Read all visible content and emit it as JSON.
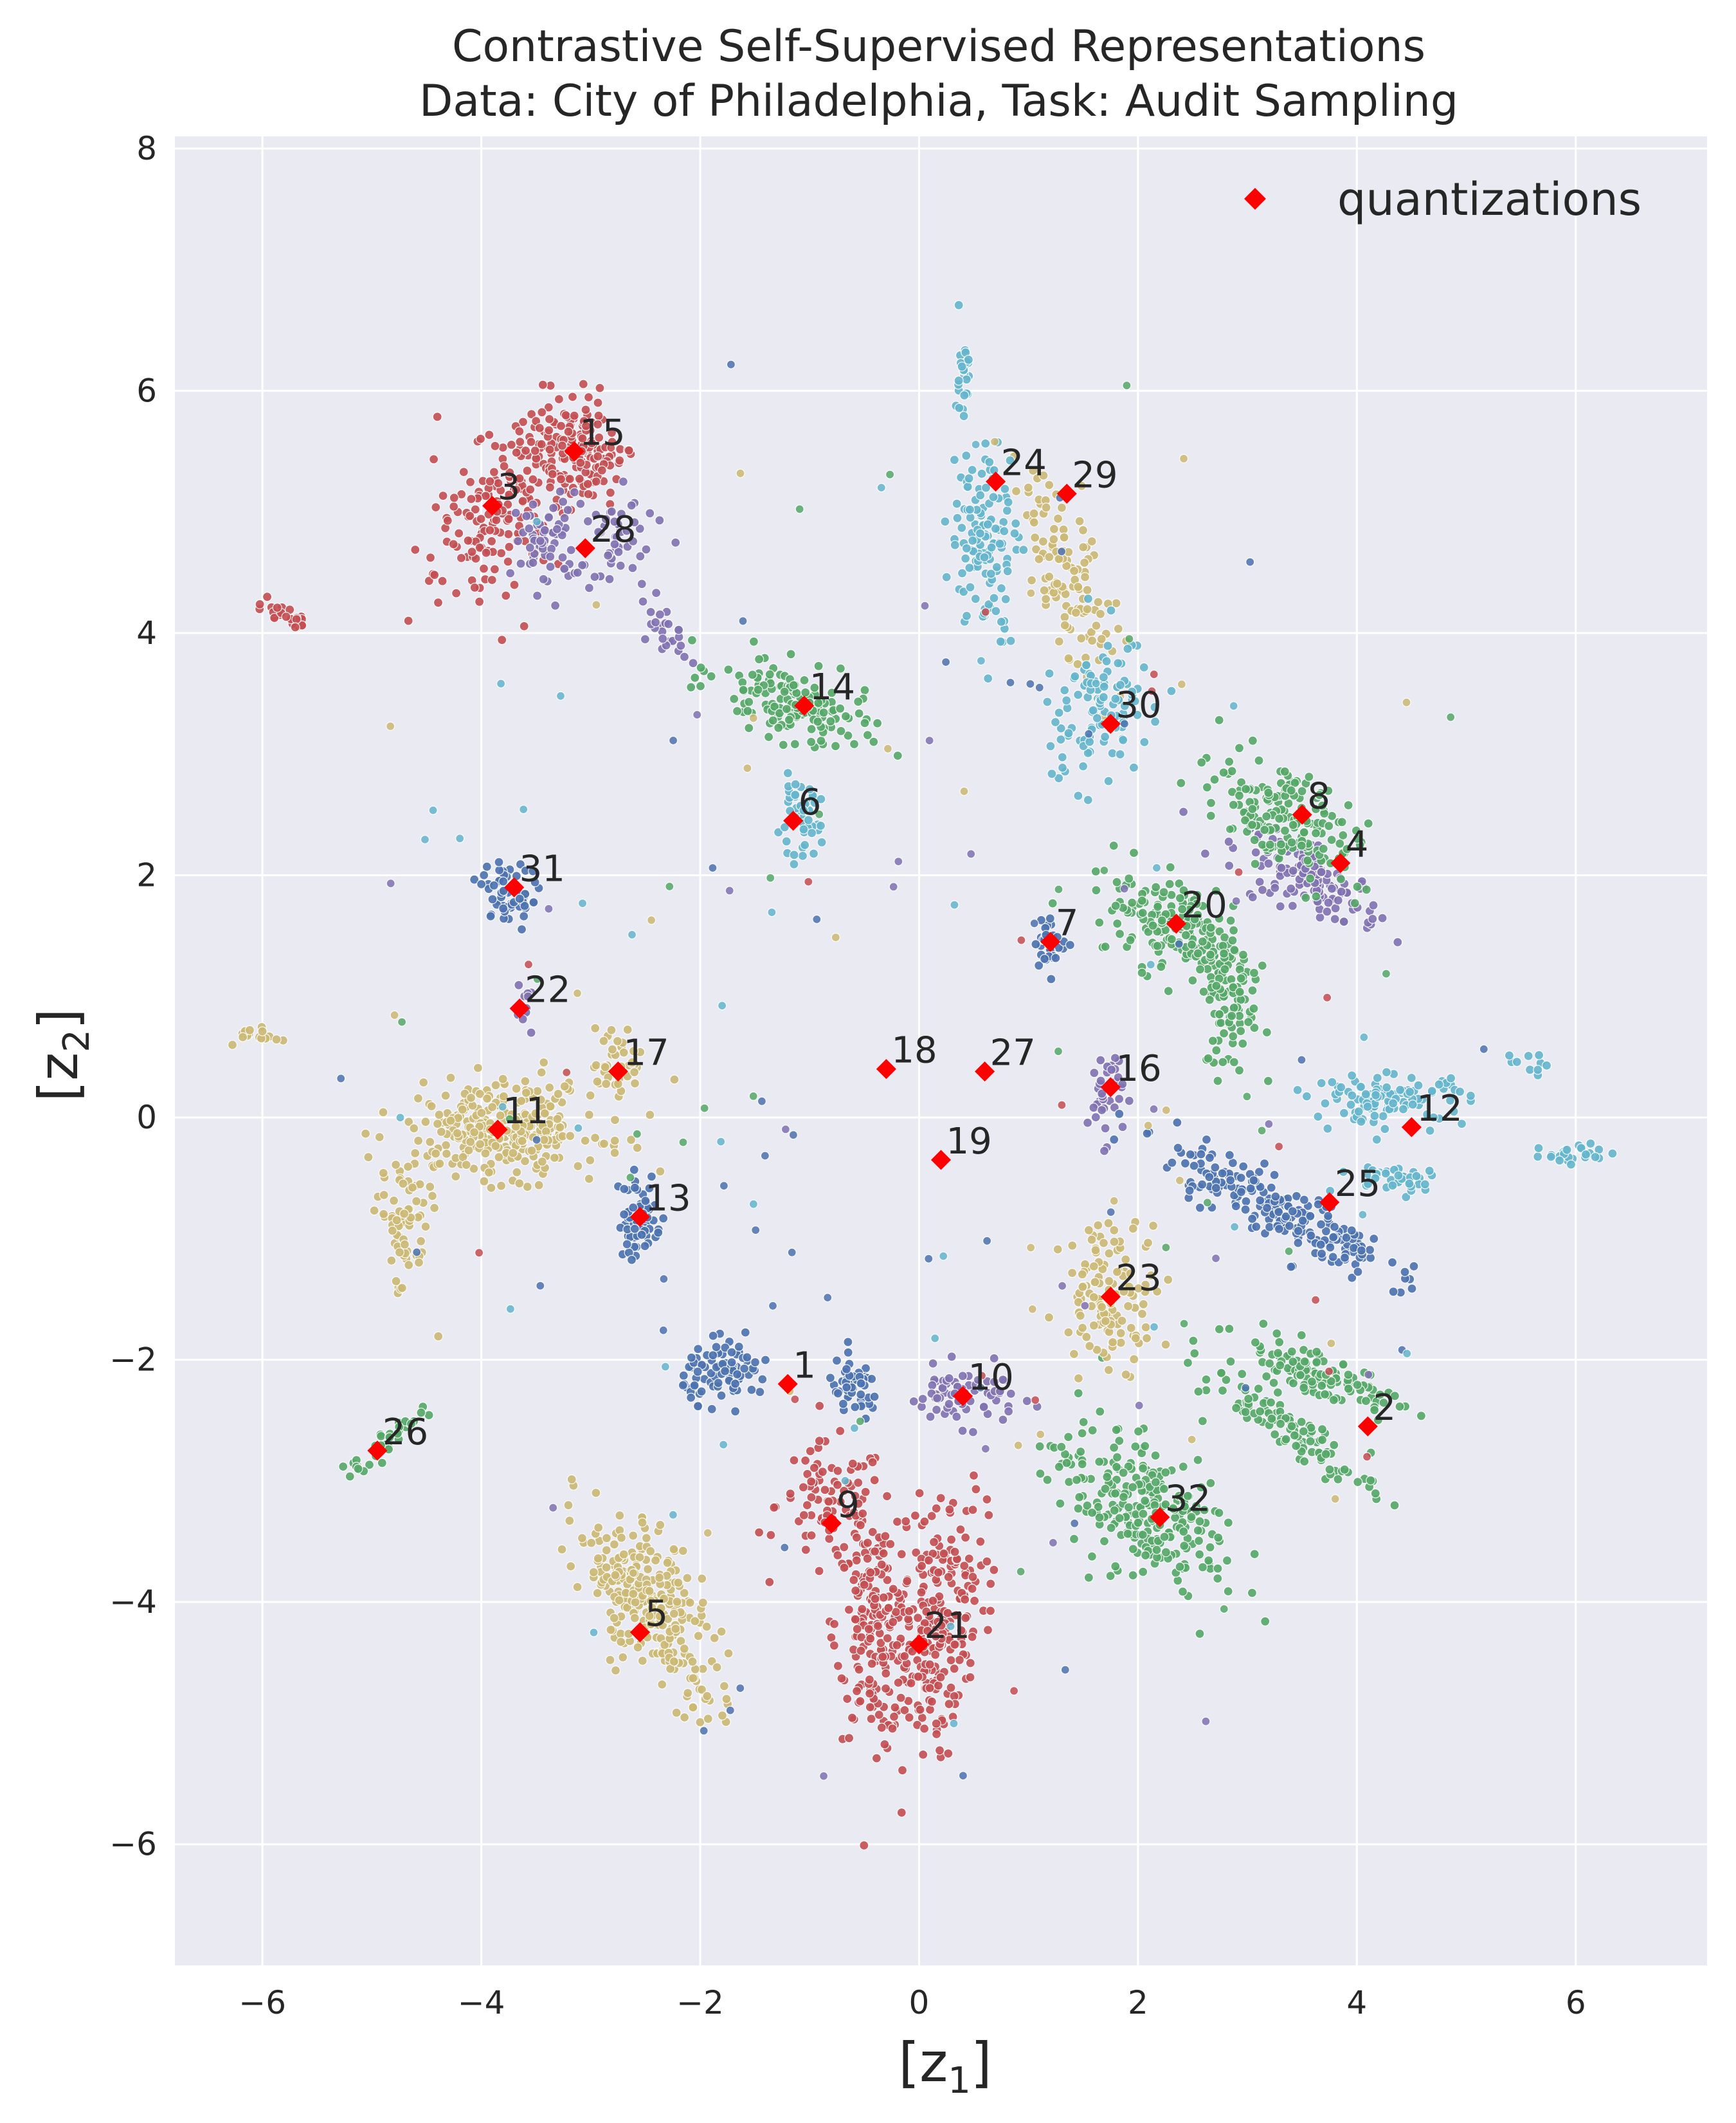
{
  "chart_data": {
    "type": "scatter",
    "title_lines": [
      "Contrastive Self-Supervised Representations",
      "Data: City of Philadelphia, Task: Audit Sampling"
    ],
    "xlabel_main": "[z",
    "xlabel_sub": "1",
    "xlabel_end": "]",
    "ylabel_main": "[z",
    "ylabel_sub": "2",
    "ylabel_end": "]",
    "xlim": [
      -6.8,
      7.2
    ],
    "ylim": [
      -7.0,
      8.1
    ],
    "x_ticks": [
      -6,
      -4,
      -2,
      0,
      2,
      4,
      6
    ],
    "x_tick_labels": [
      "−6",
      "−4",
      "−2",
      "0",
      "2",
      "4",
      "6"
    ],
    "y_ticks": [
      8,
      6,
      4,
      2,
      0,
      -2,
      -4,
      -6
    ],
    "y_tick_labels": [
      "8",
      "6",
      "4",
      "2",
      "0",
      "−2",
      "−4",
      "−6"
    ],
    "grid": true,
    "background": "#eaeaf2",
    "legend": {
      "position": "top-right",
      "label": "quantizations",
      "marker_color": "#ff0000"
    },
    "colors": {
      "blue": "#4c72b0",
      "green": "#55a868",
      "red": "#c44e52",
      "purple": "#8172b2",
      "yellow": "#ccb974",
      "cyan": "#64b5cd",
      "quantization": "#ff0000"
    },
    "quantizations": [
      {
        "id": "1",
        "x": -1.2,
        "y": -2.2
      },
      {
        "id": "2",
        "x": 4.1,
        "y": -2.55
      },
      {
        "id": "3",
        "x": -3.9,
        "y": 5.05
      },
      {
        "id": "4",
        "x": 3.85,
        "y": 2.1
      },
      {
        "id": "5",
        "x": -2.55,
        "y": -4.25
      },
      {
        "id": "6",
        "x": -1.15,
        "y": 2.45
      },
      {
        "id": "7",
        "x": 1.2,
        "y": 1.45
      },
      {
        "id": "8",
        "x": 3.5,
        "y": 2.5
      },
      {
        "id": "9",
        "x": -0.8,
        "y": -3.35
      },
      {
        "id": "10",
        "x": 0.4,
        "y": -2.3
      },
      {
        "id": "11",
        "x": -3.85,
        "y": -0.1
      },
      {
        "id": "12",
        "x": 4.5,
        "y": -0.08
      },
      {
        "id": "13",
        "x": -2.55,
        "y": -0.82
      },
      {
        "id": "14",
        "x": -1.05,
        "y": 3.4
      },
      {
        "id": "15",
        "x": -3.15,
        "y": 5.5
      },
      {
        "id": "16",
        "x": 1.75,
        "y": 0.25
      },
      {
        "id": "17",
        "x": -2.75,
        "y": 0.38
      },
      {
        "id": "18",
        "x": -0.3,
        "y": 0.4
      },
      {
        "id": "19",
        "x": 0.2,
        "y": -0.35
      },
      {
        "id": "20",
        "x": 2.35,
        "y": 1.6
      },
      {
        "id": "21",
        "x": 0.0,
        "y": -4.35
      },
      {
        "id": "22",
        "x": -3.65,
        "y": 0.9
      },
      {
        "id": "23",
        "x": 1.75,
        "y": -1.48
      },
      {
        "id": "24",
        "x": 0.7,
        "y": 5.25
      },
      {
        "id": "25",
        "x": 3.75,
        "y": -0.7
      },
      {
        "id": "26",
        "x": -4.95,
        "y": -2.75
      },
      {
        "id": "27",
        "x": 0.6,
        "y": 0.38
      },
      {
        "id": "28",
        "x": -3.05,
        "y": 4.7
      },
      {
        "id": "29",
        "x": 1.35,
        "y": 5.15
      },
      {
        "id": "30",
        "x": 1.75,
        "y": 3.25
      },
      {
        "id": "31",
        "x": -3.7,
        "y": 1.9
      },
      {
        "id": "32",
        "x": 2.2,
        "y": -3.3
      }
    ],
    "clusters": [
      {
        "color": "red",
        "cx": -3.15,
        "cy": 5.5,
        "sx": 0.25,
        "sy": 0.22,
        "n": 160,
        "rot": -40
      },
      {
        "color": "red",
        "cx": -3.85,
        "cy": 5.0,
        "sx": 0.25,
        "sy": 0.35,
        "n": 170,
        "rot": -30
      },
      {
        "color": "red",
        "cx": -5.8,
        "cy": 4.15,
        "sx": 0.15,
        "sy": 0.06,
        "n": 25,
        "rot": -30
      },
      {
        "color": "red",
        "cx": -0.8,
        "cy": -3.2,
        "sx": 0.25,
        "sy": 0.25,
        "n": 90,
        "rot": 0
      },
      {
        "color": "red",
        "cx": -0.4,
        "cy": -4.2,
        "sx": 0.18,
        "sy": 0.45,
        "n": 200,
        "rot": 0
      },
      {
        "color": "red",
        "cx": 0.15,
        "cy": -4.2,
        "sx": 0.2,
        "sy": 0.55,
        "n": 240,
        "rot": -10
      },
      {
        "color": "purple",
        "cx": -3.4,
        "cy": 4.75,
        "sx": 0.15,
        "sy": 0.2,
        "n": 60,
        "rot": 0
      },
      {
        "color": "purple",
        "cx": -2.8,
        "cy": 4.8,
        "sx": 0.2,
        "sy": 0.2,
        "n": 50,
        "rot": -30
      },
      {
        "color": "purple",
        "cx": -2.3,
        "cy": 4.0,
        "sx": 0.2,
        "sy": 0.06,
        "n": 25,
        "rot": -50
      },
      {
        "color": "purple",
        "cx": 3.6,
        "cy": 1.95,
        "sx": 0.35,
        "sy": 0.12,
        "n": 130,
        "rot": -25
      },
      {
        "color": "purple",
        "cx": 1.7,
        "cy": 0.2,
        "sx": 0.08,
        "sy": 0.2,
        "n": 40,
        "rot": 0
      },
      {
        "color": "purple",
        "cx": 0.4,
        "cy": -2.3,
        "sx": 0.25,
        "sy": 0.12,
        "n": 70,
        "rot": 0
      },
      {
        "color": "purple",
        "cx": -3.6,
        "cy": 0.9,
        "sx": 0.05,
        "sy": 0.08,
        "n": 12,
        "rot": 0
      },
      {
        "color": "green",
        "cx": -1.15,
        "cy": 3.4,
        "sx": 0.35,
        "sy": 0.15,
        "n": 150,
        "rot": -20
      },
      {
        "color": "green",
        "cx": 3.3,
        "cy": 2.5,
        "sx": 0.35,
        "sy": 0.2,
        "n": 180,
        "rot": -35
      },
      {
        "color": "green",
        "cx": 2.4,
        "cy": 1.55,
        "sx": 0.35,
        "sy": 0.2,
        "n": 180,
        "rot": -25
      },
      {
        "color": "green",
        "cx": 2.85,
        "cy": 0.95,
        "sx": 0.12,
        "sy": 0.3,
        "n": 80,
        "rot": 0
      },
      {
        "color": "green",
        "cx": 3.6,
        "cy": -2.1,
        "sx": 0.4,
        "sy": 0.1,
        "n": 120,
        "rot": -20
      },
      {
        "color": "green",
        "cx": 3.4,
        "cy": -2.6,
        "sx": 0.45,
        "sy": 0.08,
        "n": 100,
        "rot": -30
      },
      {
        "color": "green",
        "cx": 2.0,
        "cy": -3.2,
        "sx": 0.45,
        "sy": 0.25,
        "n": 260,
        "rot": -30
      },
      {
        "color": "green",
        "cx": -4.9,
        "cy": -2.7,
        "sx": 0.2,
        "sy": 0.05,
        "n": 40,
        "rot": 40
      },
      {
        "color": "blue",
        "cx": -3.75,
        "cy": 1.85,
        "sx": 0.15,
        "sy": 0.12,
        "n": 60,
        "rot": -30
      },
      {
        "color": "blue",
        "cx": 1.2,
        "cy": 1.45,
        "sx": 0.07,
        "sy": 0.1,
        "n": 35,
        "rot": 0
      },
      {
        "color": "blue",
        "cx": -2.55,
        "cy": -0.82,
        "sx": 0.1,
        "sy": 0.18,
        "n": 60,
        "rot": 0
      },
      {
        "color": "blue",
        "cx": 3.25,
        "cy": -0.75,
        "sx": 0.55,
        "sy": 0.12,
        "n": 220,
        "rot": -25
      },
      {
        "color": "blue",
        "cx": -1.75,
        "cy": -2.1,
        "sx": 0.2,
        "sy": 0.12,
        "n": 90,
        "rot": 0
      },
      {
        "color": "blue",
        "cx": -0.6,
        "cy": -2.25,
        "sx": 0.12,
        "sy": 0.12,
        "n": 50,
        "rot": 0
      },
      {
        "color": "yellow",
        "cx": -3.8,
        "cy": -0.1,
        "sx": 0.45,
        "sy": 0.2,
        "n": 300,
        "rot": 0
      },
      {
        "color": "yellow",
        "cx": -4.7,
        "cy": -0.9,
        "sx": 0.12,
        "sy": 0.3,
        "n": 70,
        "rot": 0
      },
      {
        "color": "yellow",
        "cx": -2.75,
        "cy": 0.45,
        "sx": 0.12,
        "sy": 0.15,
        "n": 40,
        "rot": 0
      },
      {
        "color": "yellow",
        "cx": -6.05,
        "cy": 0.68,
        "sx": 0.1,
        "sy": 0.03,
        "n": 15,
        "rot": 0
      },
      {
        "color": "yellow",
        "cx": -2.65,
        "cy": -3.95,
        "sx": 0.15,
        "sy": 0.4,
        "n": 150,
        "rot": 30
      },
      {
        "color": "yellow",
        "cx": -2.25,
        "cy": -4.15,
        "sx": 0.15,
        "sy": 0.4,
        "n": 150,
        "rot": 25
      },
      {
        "color": "yellow",
        "cx": 1.75,
        "cy": -1.45,
        "sx": 0.22,
        "sy": 0.3,
        "n": 130,
        "rot": 0
      },
      {
        "color": "yellow",
        "cx": 1.35,
        "cy": 4.5,
        "sx": 0.15,
        "sy": 0.45,
        "n": 120,
        "rot": 20
      },
      {
        "color": "cyan",
        "cx": 0.6,
        "cy": 4.8,
        "sx": 0.15,
        "sy": 0.4,
        "n": 130,
        "rot": 0
      },
      {
        "color": "cyan",
        "cx": 0.4,
        "cy": 6.1,
        "sx": 0.03,
        "sy": 0.2,
        "n": 25,
        "rot": 0
      },
      {
        "color": "cyan",
        "cx": 1.6,
        "cy": 3.35,
        "sx": 0.25,
        "sy": 0.3,
        "n": 110,
        "rot": -20
      },
      {
        "color": "cyan",
        "cx": -1.1,
        "cy": 2.45,
        "sx": 0.1,
        "sy": 0.15,
        "n": 50,
        "rot": 0
      },
      {
        "color": "cyan",
        "cx": 4.3,
        "cy": 0.15,
        "sx": 0.35,
        "sy": 0.1,
        "n": 110,
        "rot": 0
      },
      {
        "color": "cyan",
        "cx": 4.35,
        "cy": -0.5,
        "sx": 0.25,
        "sy": 0.06,
        "n": 40,
        "rot": 0
      },
      {
        "color": "cyan",
        "cx": 6.0,
        "cy": -0.3,
        "sx": 0.2,
        "sy": 0.05,
        "n": 25,
        "rot": 0
      },
      {
        "color": "cyan",
        "cx": 5.6,
        "cy": 0.45,
        "sx": 0.15,
        "sy": 0.05,
        "n": 10,
        "rot": 0
      }
    ],
    "scatter_noise": [
      {
        "color": "red",
        "n": 20
      },
      {
        "color": "purple",
        "n": 25
      },
      {
        "color": "green",
        "n": 30
      },
      {
        "color": "blue",
        "n": 45
      },
      {
        "color": "yellow",
        "n": 30
      },
      {
        "color": "cyan",
        "n": 40
      }
    ]
  }
}
